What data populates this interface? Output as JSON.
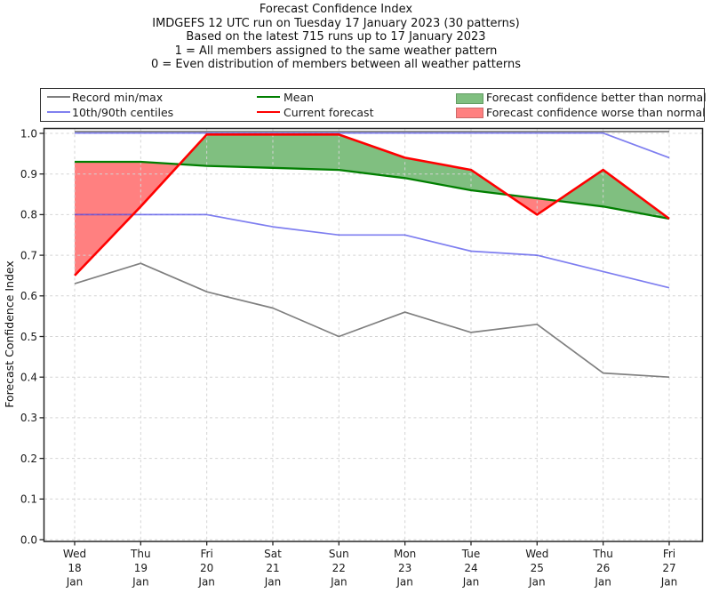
{
  "header": {
    "title": "Forecast Confidence Index",
    "line2": "IMDGEFS 12 UTC run on Tuesday 17 January 2023 (30 patterns)",
    "line3": "Based on the latest 715 runs up to 17 January 2023",
    "line4": "1 = All members assigned to the same weather pattern",
    "line5": "0 = Even distribution of members between all weather patterns"
  },
  "legend": {
    "record": "Record min/max",
    "centiles": "10th/90th centiles",
    "mean": "Mean",
    "current": "Current forecast",
    "better": "Forecast confidence better than normal",
    "worse": "Forecast confidence worse than normal"
  },
  "colors": {
    "record": "#808080",
    "centiles": "#8080ef",
    "centiles_plot": "rgba(47,47,230,0.62)",
    "mean": "#007f00",
    "current": "#fe0000",
    "better_fill": "#80bf80",
    "worse_fill": "#ff8080",
    "grid": "#d4d4d4",
    "spine": "#262626",
    "tick_text": "#191919"
  },
  "chart_data": {
    "type": "line",
    "title": "Forecast Confidence Index",
    "ylabel": "Forecast Confidence Index",
    "ylim": [
      0.0,
      1.0
    ],
    "y_tick_step": 0.1,
    "grid": true,
    "legend_position": "top",
    "categories": [
      "Wed 18 Jan",
      "Thu 19 Jan",
      "Fri 20 Jan",
      "Sat 21 Jan",
      "Sun 22 Jan",
      "Mon 23 Jan",
      "Tue 24 Jan",
      "Wed 25 Jan",
      "Thu 26 Jan",
      "Fri 27 Jan"
    ],
    "x_tick_labels": [
      [
        "Wed",
        "18",
        "Jan"
      ],
      [
        "Thu",
        "19",
        "Jan"
      ],
      [
        "Fri",
        "20",
        "Jan"
      ],
      [
        "Sat",
        "21",
        "Jan"
      ],
      [
        "Sun",
        "22",
        "Jan"
      ],
      [
        "Mon",
        "23",
        "Jan"
      ],
      [
        "Tue",
        "24",
        "Jan"
      ],
      [
        "Wed",
        "25",
        "Jan"
      ],
      [
        "Thu",
        "26",
        "Jan"
      ],
      [
        "Fri",
        "27",
        "Jan"
      ]
    ],
    "series": [
      {
        "name": "Record max",
        "values": [
          1.0,
          1.0,
          1.0,
          1.0,
          1.0,
          1.0,
          1.0,
          1.0,
          1.0,
          1.0
        ]
      },
      {
        "name": "90th centile",
        "values": [
          1.0,
          1.0,
          1.0,
          1.0,
          1.0,
          1.0,
          1.0,
          1.0,
          1.0,
          0.94
        ]
      },
      {
        "name": "10th centile",
        "values": [
          0.8,
          0.8,
          0.8,
          0.77,
          0.75,
          0.75,
          0.71,
          0.7,
          0.66,
          0.62
        ]
      },
      {
        "name": "Record min",
        "values": [
          0.63,
          0.68,
          0.61,
          0.57,
          0.5,
          0.56,
          0.51,
          0.53,
          0.41,
          0.4
        ]
      },
      {
        "name": "Mean",
        "values": [
          0.93,
          0.93,
          0.92,
          0.915,
          0.91,
          0.89,
          0.86,
          0.84,
          0.82,
          0.79
        ]
      },
      {
        "name": "Current forecast",
        "values": [
          0.65,
          0.82,
          1.0,
          1.0,
          1.0,
          0.94,
          0.91,
          0.8,
          0.91,
          0.79
        ]
      }
    ],
    "fill_rule": "area between Current forecast and Mean: green where current > mean (better than normal), red where current < mean (worse than normal)"
  }
}
